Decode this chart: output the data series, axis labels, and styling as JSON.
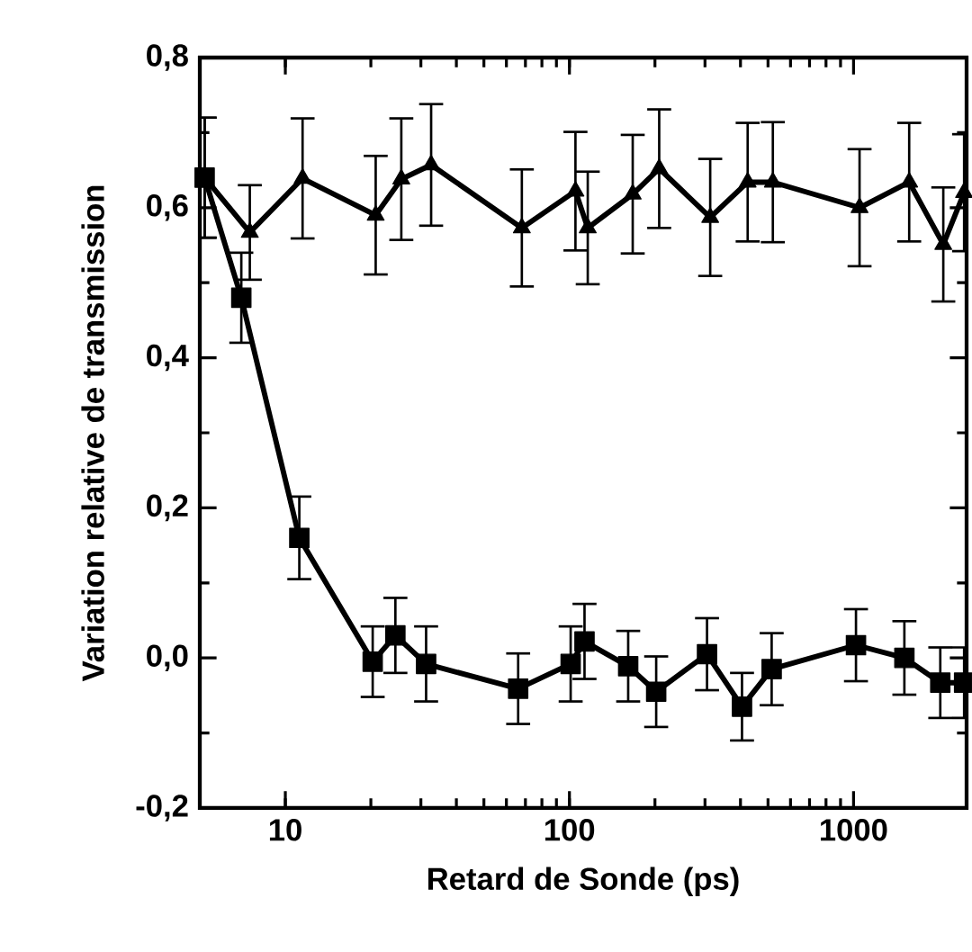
{
  "chart_data": {
    "type": "line",
    "xlabel": "Retard de Sonde (ps)",
    "ylabel": "Variation relative de transmission",
    "log": "x",
    "xlim": [
      5,
      2500
    ],
    "ylim": [
      -0.2,
      0.8
    ],
    "xticks": [
      10,
      100,
      1000
    ],
    "yticks": [
      {
        "value": -0.2,
        "label": "-0,2"
      },
      {
        "value": 0,
        "label": "0,0"
      },
      {
        "value": 0.2,
        "label": "0,2"
      },
      {
        "value": 0.4,
        "label": "0,4"
      },
      {
        "value": 0.6,
        "label": "0,6"
      },
      {
        "value": 0.8,
        "label": "0,8"
      }
    ],
    "grid": false,
    "line_style": "solid",
    "series": [
      {
        "color": "#000000",
        "marker": "square",
        "x": [
          5.2,
          7.0,
          11.2,
          20.3,
          24.4,
          31.3,
          66,
          101,
          113,
          161,
          202,
          305,
          405,
          515,
          1020,
          1510,
          2020,
          2450
        ],
        "values": [
          0.64,
          0.48,
          0.16,
          -0.005,
          0.03,
          -0.008,
          -0.041,
          -0.008,
          0.022,
          -0.011,
          -0.045,
          0.005,
          -0.065,
          -0.015,
          0.017,
          0.0,
          -0.033,
          -0.033
        ],
        "errors": [
          0.08,
          0.06,
          0.055,
          0.047,
          0.05,
          0.05,
          0.047,
          0.05,
          0.05,
          0.047,
          0.047,
          0.048,
          0.045,
          0.048,
          0.048,
          0.049,
          0.047,
          0.047
        ]
      },
      {
        "color": "#000000",
        "marker": "triangle",
        "x": [
          5.2,
          7.5,
          11.5,
          20.8,
          25.6,
          32.6,
          68,
          105,
          116,
          167,
          207,
          313,
          424,
          520,
          1050,
          1570,
          2070,
          2450
        ],
        "values": [
          0.64,
          0.567,
          0.639,
          0.59,
          0.638,
          0.657,
          0.573,
          0.622,
          0.573,
          0.618,
          0.652,
          0.587,
          0.634,
          0.634,
          0.6,
          0.634,
          0.551,
          0.62
        ],
        "errors": [
          0.08,
          0.063,
          0.08,
          0.079,
          0.081,
          0.081,
          0.078,
          0.079,
          0.075,
          0.079,
          0.079,
          0.078,
          0.079,
          0.08,
          0.078,
          0.079,
          0.076,
          0.078
        ]
      }
    ]
  }
}
